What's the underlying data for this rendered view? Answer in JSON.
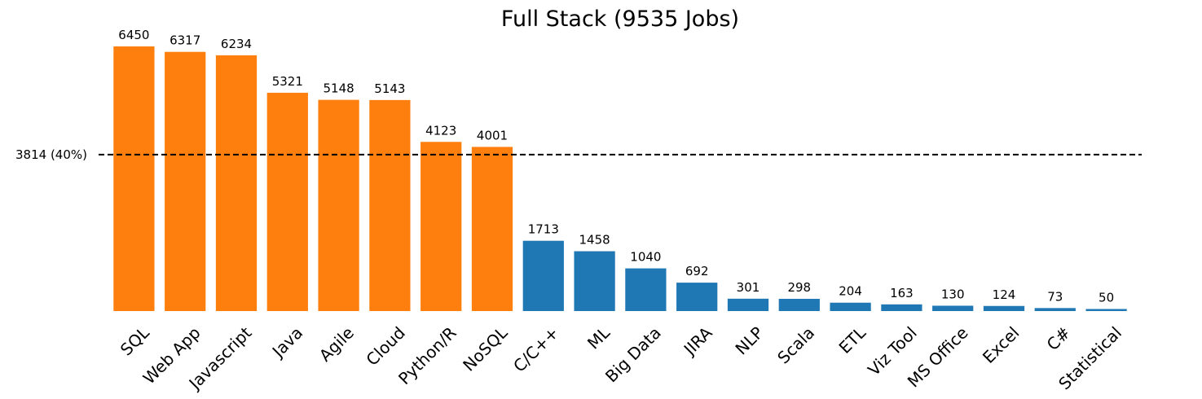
{
  "chart_data": {
    "type": "bar",
    "title": "Full Stack (9535 Jobs)",
    "xlabel": "",
    "ylabel": "",
    "total_jobs": 9535,
    "categories": [
      "SQL",
      "Web App",
      "Javascript",
      "Java",
      "Agile",
      "Cloud",
      "Python/R",
      "NoSQL",
      "C/C++",
      "ML",
      "Big Data",
      "JIRA",
      "NLP",
      "Scala",
      "ETL",
      "Viz Tool",
      "MS Office",
      "Excel",
      "C#",
      "Statistical"
    ],
    "values": [
      6450,
      6317,
      6234,
      5321,
      5148,
      5143,
      4123,
      4001,
      1713,
      1458,
      1040,
      692,
      301,
      298,
      204,
      163,
      130,
      124,
      73,
      50
    ],
    "ylim": [
      0,
      6450
    ],
    "threshold": {
      "value": 3814,
      "label": "3814 (40%)",
      "style": "dashed",
      "color": "#000000"
    },
    "colors": {
      "above_threshold": "#ff7f0e",
      "below_threshold": "#1f77b4"
    },
    "grid": false,
    "legend": "none",
    "show_value_labels": true
  }
}
